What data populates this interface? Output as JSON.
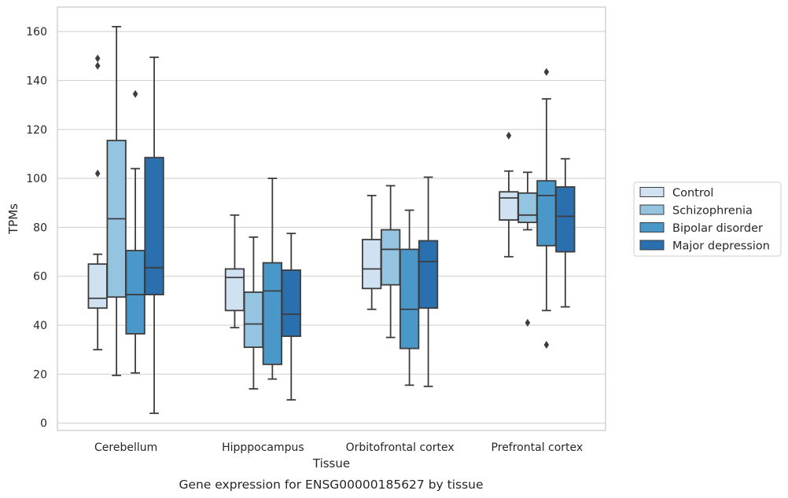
{
  "caption": "Gene expression for ENSG00000185627 by tissue",
  "chart_data": {
    "type": "box",
    "xlabel": "Tissue",
    "ylabel": "TPMs",
    "ylim": [
      -3,
      170
    ],
    "yticks": [
      0,
      20,
      40,
      60,
      80,
      100,
      120,
      140,
      160
    ],
    "grid": "horizontal",
    "legend_position": "right",
    "categories": [
      "Cerebellum",
      "Hipppocampus",
      "Orbitofrontal cortex",
      "Prefrontal cortex"
    ],
    "series": [
      {
        "name": "Control",
        "color": "#d0e1f2",
        "boxes": [
          {
            "whislo": 30,
            "q1": 47,
            "med": 51,
            "q3": 65,
            "whishi": 69,
            "fliers": [
              102,
              146,
              149
            ]
          },
          {
            "whislo": 39,
            "q1": 46,
            "med": 59.5,
            "q3": 63,
            "whishi": 85,
            "fliers": []
          },
          {
            "whislo": 46.5,
            "q1": 55,
            "med": 63,
            "q3": 75,
            "whishi": 93,
            "fliers": []
          },
          {
            "whislo": 68,
            "q1": 83,
            "med": 92,
            "q3": 94.5,
            "whishi": 103,
            "fliers": [
              117.5
            ]
          }
        ]
      },
      {
        "name": "Schizophrenia",
        "color": "#94c4df",
        "boxes": [
          {
            "whislo": 19.5,
            "q1": 51.5,
            "med": 83.5,
            "q3": 115.5,
            "whishi": 162,
            "fliers": []
          },
          {
            "whislo": 14,
            "q1": 31,
            "med": 40.5,
            "q3": 53.5,
            "whishi": 76,
            "fliers": []
          },
          {
            "whislo": 35,
            "q1": 56.5,
            "med": 71,
            "q3": 79,
            "whishi": 97,
            "fliers": []
          },
          {
            "whislo": 79,
            "q1": 82,
            "med": 85,
            "q3": 94,
            "whishi": 102.5,
            "fliers": [
              41
            ]
          }
        ]
      },
      {
        "name": "Bipolar disorder",
        "color": "#4a98c9",
        "boxes": [
          {
            "whislo": 20.5,
            "q1": 36.5,
            "med": 52.5,
            "q3": 70.5,
            "whishi": 104,
            "fliers": [
              134.5
            ]
          },
          {
            "whislo": 18,
            "q1": 24,
            "med": 54,
            "q3": 65.5,
            "whishi": 100,
            "fliers": []
          },
          {
            "whislo": 15.5,
            "q1": 30.5,
            "med": 46.5,
            "q3": 71,
            "whishi": 87,
            "fliers": []
          },
          {
            "whislo": 46,
            "q1": 72.5,
            "med": 93,
            "q3": 99,
            "whishi": 132.5,
            "fliers": [
              32,
              143.5
            ]
          }
        ]
      },
      {
        "name": "Major depression",
        "color": "#2a6fae",
        "boxes": [
          {
            "whislo": 4,
            "q1": 52.5,
            "med": 63.5,
            "q3": 108.5,
            "whishi": 149.5,
            "fliers": []
          },
          {
            "whislo": 9.5,
            "q1": 35.5,
            "med": 44.5,
            "q3": 62.5,
            "whishi": 77.5,
            "fliers": []
          },
          {
            "whislo": 15,
            "q1": 47,
            "med": 66,
            "q3": 74.5,
            "whishi": 100.5,
            "fliers": []
          },
          {
            "whislo": 47.5,
            "q1": 70,
            "med": 84.5,
            "q3": 96.5,
            "whishi": 108,
            "fliers": []
          }
        ]
      }
    ]
  }
}
